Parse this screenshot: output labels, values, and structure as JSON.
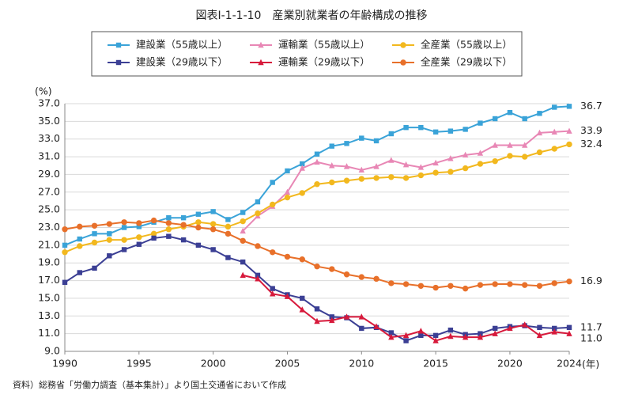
{
  "chart_data": {
    "type": "line",
    "title": "図表Ⅰ-1-1-10　産業別就業者の年齢構成の推移",
    "y_label": "(%)",
    "x_label": "(年)",
    "source": "資料）総務省「労働力調査（基本集計）」より国土交通省において作成",
    "x": [
      1990,
      1991,
      1992,
      1993,
      1994,
      1995,
      1996,
      1997,
      1998,
      1999,
      2000,
      2001,
      2002,
      2003,
      2004,
      2005,
      2006,
      2007,
      2008,
      2009,
      2010,
      2011,
      2012,
      2013,
      2014,
      2015,
      2016,
      2017,
      2018,
      2019,
      2020,
      2021,
      2022,
      2023,
      2024
    ],
    "xlim": [
      1990,
      2024
    ],
    "xticks": [
      1990,
      1995,
      2000,
      2005,
      2010,
      2015,
      2020,
      2024
    ],
    "ylim": [
      9,
      37
    ],
    "yticks": [
      {
        "value": 9,
        "label": "9.0"
      },
      {
        "value": 11,
        "label": "11.0"
      },
      {
        "value": 13,
        "label": "13.0"
      },
      {
        "value": 15,
        "label": "15.0"
      },
      {
        "value": 17,
        "label": "17.0"
      },
      {
        "value": 19,
        "label": "19.0"
      },
      {
        "value": 21,
        "label": "21.0"
      },
      {
        "value": 23,
        "label": "23.0"
      },
      {
        "value": 25,
        "label": "25.0"
      },
      {
        "value": 27,
        "label": "27.0"
      },
      {
        "value": 29,
        "label": "29.0"
      },
      {
        "value": 31,
        "label": "31.0"
      },
      {
        "value": 33,
        "label": "33.0"
      },
      {
        "value": 35,
        "label": "35.0"
      },
      {
        "value": 37,
        "label": "37.0"
      }
    ],
    "grid": true,
    "series": [
      {
        "name": "建設業（55歳以上）",
        "color": "#3aa3d8",
        "marker": "square",
        "end_label": "36.7",
        "values": [
          21.0,
          21.7,
          22.3,
          22.3,
          23.0,
          23.1,
          23.6,
          24.1,
          24.1,
          24.5,
          24.8,
          23.9,
          24.7,
          25.9,
          28.1,
          29.4,
          30.2,
          31.3,
          32.2,
          32.5,
          33.1,
          32.8,
          33.6,
          34.3,
          34.3,
          33.8,
          33.9,
          34.1,
          34.8,
          35.3,
          36.0,
          35.3,
          35.9,
          36.6,
          36.7
        ]
      },
      {
        "name": "運輸業（55歳以上）",
        "color": "#e887b5",
        "marker": "triangle",
        "end_label": "33.9",
        "values": [
          null,
          null,
          null,
          null,
          null,
          null,
          null,
          null,
          null,
          null,
          null,
          null,
          22.6,
          24.3,
          25.4,
          27.0,
          29.7,
          30.4,
          30.0,
          29.9,
          29.5,
          29.9,
          30.6,
          30.1,
          29.8,
          30.3,
          30.8,
          31.2,
          31.4,
          32.3,
          32.3,
          32.3,
          33.7,
          33.8,
          33.9
        ]
      },
      {
        "name": "全産業（55歳以上）",
        "color": "#f2b81e",
        "marker": "circle",
        "end_label": "32.4",
        "values": [
          20.2,
          20.9,
          21.3,
          21.6,
          21.6,
          21.9,
          22.3,
          22.8,
          23.1,
          23.6,
          23.4,
          23.1,
          23.7,
          24.6,
          25.6,
          26.4,
          26.9,
          27.9,
          28.1,
          28.3,
          28.5,
          28.6,
          28.7,
          28.6,
          28.9,
          29.2,
          29.3,
          29.7,
          30.2,
          30.5,
          31.1,
          31.0,
          31.5,
          31.9,
          32.4
        ]
      },
      {
        "name": "建設業（29歳以下）",
        "color": "#3b3f94",
        "marker": "square",
        "end_label": "11.7",
        "values": [
          16.8,
          17.9,
          18.4,
          19.8,
          20.5,
          21.1,
          21.8,
          22.0,
          21.6,
          21.0,
          20.5,
          19.6,
          19.1,
          17.6,
          16.1,
          15.4,
          15.0,
          13.8,
          12.9,
          12.8,
          11.6,
          11.7,
          11.1,
          10.2,
          10.8,
          10.8,
          11.4,
          10.9,
          11.0,
          11.6,
          11.8,
          11.9,
          11.7,
          11.6,
          11.7
        ]
      },
      {
        "name": "運輸業（29歳以下）",
        "color": "#d7193b",
        "marker": "triangle",
        "end_label": "11.0",
        "values": [
          null,
          null,
          null,
          null,
          null,
          null,
          null,
          null,
          null,
          null,
          null,
          null,
          17.6,
          17.2,
          15.5,
          15.2,
          13.7,
          12.4,
          12.5,
          12.9,
          12.9,
          11.8,
          10.6,
          10.8,
          11.3,
          10.2,
          10.7,
          10.6,
          10.6,
          11.0,
          11.6,
          12.0,
          10.8,
          11.2,
          11.0
        ]
      },
      {
        "name": "全産業（29歳以下）",
        "color": "#e8702a",
        "marker": "circle",
        "end_label": "16.9",
        "values": [
          22.8,
          23.1,
          23.2,
          23.4,
          23.6,
          23.5,
          23.8,
          23.5,
          23.3,
          23.0,
          22.8,
          22.3,
          21.5,
          20.9,
          20.2,
          19.7,
          19.4,
          18.6,
          18.3,
          17.7,
          17.4,
          17.2,
          16.7,
          16.6,
          16.4,
          16.2,
          16.4,
          16.1,
          16.5,
          16.6,
          16.6,
          16.5,
          16.4,
          16.7,
          16.9
        ]
      }
    ]
  }
}
